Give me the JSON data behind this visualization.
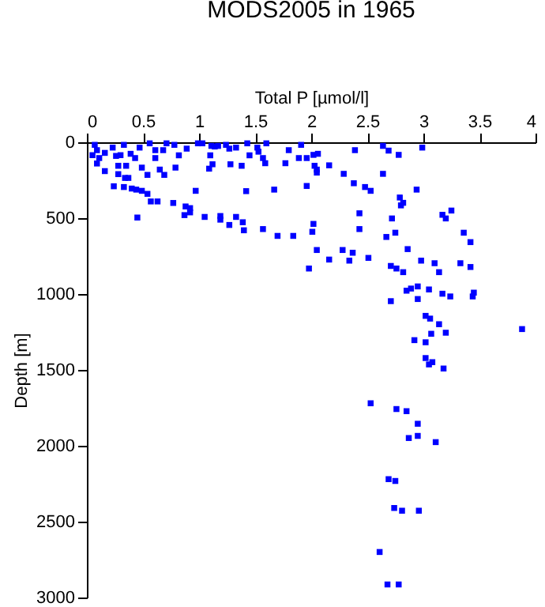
{
  "chart_data": {
    "type": "scatter",
    "title": "MODS2005 in 1965",
    "xlabel": "Total P [µmol/l]",
    "ylabel": "Depth [m]",
    "xlim": [
      0,
      4
    ],
    "xticks": [
      0,
      0.5,
      1,
      1.5,
      2,
      2.5,
      3,
      3.5,
      4
    ],
    "ylim": [
      3000,
      0
    ],
    "yticks": [
      0,
      500,
      1000,
      1500,
      2000,
      2500,
      3000
    ],
    "grid": false,
    "marker": "square",
    "legend": false,
    "series": [
      {
        "color": "#0000ff",
        "x": [
          0.07,
          0.09,
          0.05,
          0.11,
          0.16,
          0.09,
          0.16,
          0.23,
          0.26,
          0.28,
          0.3,
          0.33,
          0.28,
          0.35,
          0.34,
          0.24,
          0.33,
          0.4,
          0.44,
          0.49,
          0.54,
          0.37,
          0.39,
          0.43,
          0.47,
          0.49,
          0.54,
          0.56,
          0.61,
          0.61,
          0.65,
          0.69,
          0.68,
          0.71,
          0.78,
          0.79,
          0.82,
          0.89,
          0.57,
          0.63,
          0.77,
          0.88,
          0.92,
          0.92,
          0.87,
          0.45,
          0.97,
          0.99,
          1.03,
          1.05,
          1.11,
          1.14,
          1.17,
          1.1,
          1.12,
          1.09,
          1.19,
          1.19,
          1.27,
          1.28,
          1.24,
          1.27,
          1.33,
          1.33,
          1.38,
          1.39,
          1.4,
          1.43,
          1.42,
          1.45,
          1.52,
          1.53,
          1.57,
          1.59,
          1.6,
          1.57,
          1.67,
          1.7,
          1.77,
          1.8,
          1.84,
          1.91,
          1.89,
          1.96,
          2.02,
          2.06,
          2.03,
          2.05,
          2.05,
          2.16,
          2.29,
          2.39,
          2.38,
          2.48,
          2.53,
          2.64,
          2.69,
          2.78,
          2.64,
          2.99,
          2.94,
          1.96,
          2.79,
          2.82,
          2.8,
          2.43,
          2.72,
          2.02,
          2.01,
          2.43,
          2.67,
          2.75,
          3.17,
          3.2,
          3.25,
          3.36,
          3.42,
          2.86,
          2.05,
          2.28,
          2.37,
          2.16,
          2.34,
          2.51,
          1.98,
          2.71,
          2.76,
          2.82,
          2.98,
          3.1,
          3.14,
          3.33,
          3.42,
          2.95,
          2.85,
          2.89,
          3.05,
          3.17,
          3.24,
          3.45,
          3.44,
          2.71,
          2.95,
          3.02,
          3.06,
          3.14,
          3.88,
          3.07,
          3.2,
          2.92,
          3.02,
          3.02,
          3.05,
          3.08,
          3.18,
          2.53,
          2.76,
          2.85,
          2.95,
          2.95,
          2.87,
          3.11,
          2.69,
          2.75,
          2.74,
          2.81,
          2.96,
          2.61,
          2.68,
          2.78
        ],
        "values": [
          17,
          52,
          85,
          104,
          70,
          140,
          190,
          35,
          90,
          155,
          85,
          17,
          210,
          155,
          235,
          290,
          295,
          305,
          312,
          320,
          340,
          235,
          76,
          104,
          35,
          167,
          215,
          7,
          52,
          104,
          180,
          215,
          52,
          7,
          17,
          167,
          86,
          42,
          390,
          390,
          400,
          423,
          434,
          462,
          480,
          496,
          320,
          7,
          7,
          492,
          24,
          28,
          24,
          86,
          145,
          174,
          486,
          510,
          545,
          145,
          17,
          42,
          35,
          492,
          155,
          527,
          580,
          7,
          322,
          86,
          35,
          62,
          104,
          138,
          7,
          572,
          312,
          617,
          138,
          52,
          617,
          17,
          104,
          104,
          83,
          76,
          155,
          180,
          200,
          152,
          208,
          52,
          270,
          295,
          320,
          24,
          55,
          83,
          208,
          35,
          312,
          288,
          364,
          399,
          416,
          468,
          502,
          538,
          590,
          572,
          624,
          596,
          478,
          502,
          450,
          596,
          658,
          704,
          710,
          710,
          728,
          773,
          780,
          762,
          832,
          815,
          832,
          856,
          780,
          797,
          856,
          797,
          822,
          950,
          978,
          964,
          970,
          998,
          1016,
          991,
          1016,
          1047,
          1033,
          1144,
          1162,
          1199,
          1231,
          1262,
          1255,
          1304,
          1318,
          1422,
          1464,
          1449,
          1491,
          1720,
          1758,
          1772,
          1855,
          1935,
          1949,
          1976,
          2220,
          2232,
          2410,
          2428,
          2428,
          2700,
          2914,
          2914
        ]
      }
    ]
  }
}
